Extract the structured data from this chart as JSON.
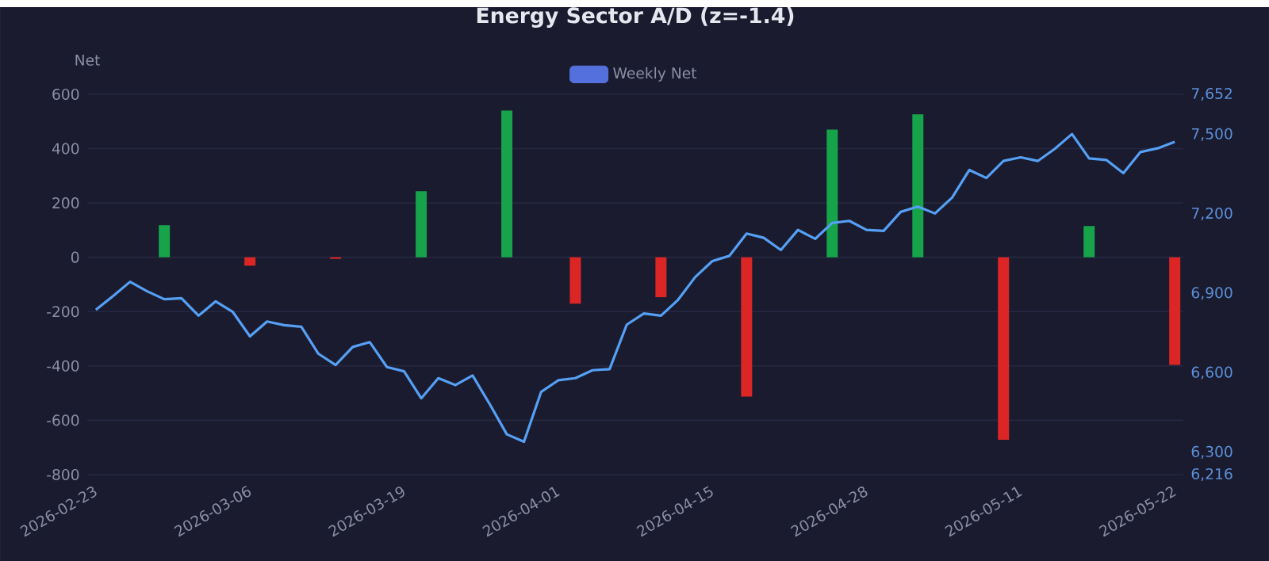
{
  "chart_data": {
    "type": "bar",
    "title": "Energy Sector A/D (z=-1.4)",
    "ylabel": "Net",
    "categories": [
      "2026-02-23",
      null,
      null,
      null,
      null,
      null,
      null,
      null,
      null,
      "2026-03-06",
      null,
      null,
      null,
      null,
      null,
      null,
      null,
      null,
      "2026-03-19",
      null,
      null,
      null,
      null,
      null,
      null,
      null,
      null,
      "2026-04-01",
      null,
      null,
      null,
      null,
      null,
      null,
      null,
      null,
      "2026-04-15",
      null,
      null,
      null,
      null,
      null,
      null,
      null,
      null,
      "2026-04-28",
      null,
      null,
      null,
      null,
      null,
      null,
      null,
      null,
      "2026-05-11",
      null,
      null,
      null,
      null,
      null,
      null,
      null,
      null,
      "2026-05-22"
    ],
    "series": [
      {
        "name": "Weekly Net",
        "color": "#5470dd",
        "values": [
          null,
          null,
          null,
          null,
          118,
          null,
          null,
          null,
          null,
          -31,
          null,
          null,
          null,
          null,
          -6,
          null,
          null,
          null,
          null,
          243,
          null,
          null,
          null,
          null,
          540,
          null,
          null,
          null,
          -171,
          null,
          null,
          null,
          null,
          -147,
          null,
          null,
          null,
          null,
          -513,
          null,
          null,
          null,
          null,
          470,
          null,
          null,
          null,
          null,
          526,
          null,
          null,
          null,
          null,
          -672,
          null,
          null,
          null,
          null,
          115,
          null,
          null,
          null,
          null,
          -396
        ],
        "colors": [
          null,
          null,
          null,
          null,
          "#16a34a",
          null,
          null,
          null,
          null,
          "#dc2626",
          null,
          null,
          null,
          null,
          "#dc2626",
          null,
          null,
          null,
          null,
          "#16a34a",
          null,
          null,
          null,
          null,
          "#16a34a",
          null,
          null,
          null,
          "#dc2626",
          null,
          null,
          null,
          null,
          "#dc2626",
          null,
          null,
          null,
          null,
          "#dc2626",
          null,
          null,
          null,
          null,
          "#16a34a",
          null,
          null,
          null,
          null,
          "#16a34a",
          null,
          null,
          null,
          null,
          "#dc2626",
          null,
          null,
          null,
          null,
          "#16a34a",
          null,
          null,
          null,
          null,
          "#dc2626"
        ]
      },
      {
        "type": "line",
        "axis": "y2",
        "color": "#55a0f5",
        "values": [
          6838,
          6890,
          6944,
          6908,
          6878,
          6882,
          6816,
          6870,
          6830,
          6738,
          6794,
          6780,
          6774,
          6672,
          6630,
          6698,
          6716,
          6622,
          6606,
          6504,
          6580,
          6554,
          6590,
          6482,
          6368,
          6340,
          6528,
          6572,
          6580,
          6610,
          6614,
          6782,
          6824,
          6816,
          6876,
          6962,
          7022,
          7042,
          7126,
          7110,
          7064,
          7140,
          7106,
          7166,
          7174,
          7140,
          7136,
          7208,
          7228,
          7202,
          7262,
          7366,
          7336,
          7400,
          7414,
          7400,
          7446,
          7502,
          7410,
          7404,
          7354,
          7434,
          7448,
          7472
        ]
      }
    ],
    "ylim": [
      -800,
      600
    ],
    "yticks": [
      -800,
      -600,
      -400,
      -200,
      0,
      200,
      400,
      600
    ],
    "y2lim": [
      6216,
      7652
    ],
    "y2ticks": [
      {
        "value": 6216,
        "label": "6,216"
      },
      {
        "value": 6300,
        "label": "6,300"
      },
      {
        "value": 6600,
        "label": "6,600"
      },
      {
        "value": 6900,
        "label": "6,900"
      },
      {
        "value": 7200,
        "label": "7,200"
      },
      {
        "value": 7500,
        "label": "7,500"
      },
      {
        "value": 7652,
        "label": "7,652"
      }
    ],
    "grid": "y",
    "legend": "top"
  }
}
